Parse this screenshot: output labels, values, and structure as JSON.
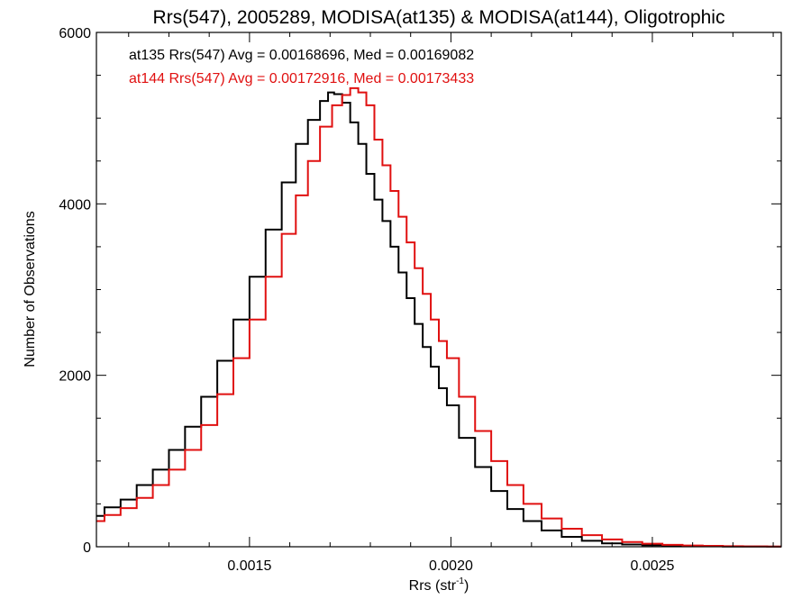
{
  "chart_data": {
    "type": "line",
    "title": "Rrs(547), 2005289, MODISA(at135) & MODISA(at144), Oligotrophic",
    "xlabel": "Rrs (str",
    "xlabel_sup": "-1",
    "xlabel_suffix": ")",
    "ylabel": "Number of Observations",
    "xlim": [
      0.00112,
      0.00282
    ],
    "ylim": [
      0,
      6000
    ],
    "x_ticks": [
      {
        "value": 0.0015,
        "label": "0.0015"
      },
      {
        "value": 0.002,
        "label": "0.0020"
      },
      {
        "value": 0.0025,
        "label": "0.0025"
      }
    ],
    "y_ticks": [
      {
        "value": 0,
        "label": "0"
      },
      {
        "value": 2000,
        "label": "2000"
      },
      {
        "value": 4000,
        "label": "4000"
      },
      {
        "value": 6000,
        "label": "6000"
      }
    ],
    "series": [
      {
        "name": "at135",
        "color": "#000000",
        "stats_text": "at135 Rrs(547) Avg = 0.00168696, Med = 0.00169082",
        "step": "mid",
        "x": [
          0.00112,
          0.00116,
          0.0012,
          0.00124,
          0.00128,
          0.00132,
          0.00136,
          0.0014,
          0.00144,
          0.00148,
          0.00152,
          0.00156,
          0.0016,
          0.00163,
          0.00166,
          0.00169,
          0.0017,
          0.00172,
          0.00174,
          0.00176,
          0.00178,
          0.0018,
          0.00182,
          0.00184,
          0.00186,
          0.00188,
          0.0019,
          0.00192,
          0.00194,
          0.00196,
          0.00198,
          0.002,
          0.00204,
          0.00208,
          0.00212,
          0.00216,
          0.0022,
          0.00225,
          0.0023,
          0.00235,
          0.0024,
          0.00245,
          0.0025,
          0.00255,
          0.0026,
          0.00265,
          0.0027,
          0.00275,
          0.00282
        ],
        "values": [
          360,
          460,
          550,
          720,
          900,
          1130,
          1400,
          1750,
          2170,
          2650,
          3150,
          3700,
          4250,
          4700,
          4980,
          5200,
          5300,
          5280,
          5180,
          4950,
          4700,
          4350,
          4050,
          3800,
          3500,
          3200,
          2900,
          2600,
          2330,
          2100,
          1850,
          1650,
          1270,
          930,
          650,
          440,
          300,
          190,
          115,
          70,
          40,
          26,
          17,
          12,
          8,
          5,
          3,
          2,
          1
        ]
      },
      {
        "name": "at144",
        "color": "#e01010",
        "stats_text": "at144 Rrs(547) Avg = 0.00172916, Med = 0.00173433",
        "step": "mid",
        "x": [
          0.00112,
          0.00116,
          0.0012,
          0.00124,
          0.00128,
          0.00132,
          0.00136,
          0.0014,
          0.00144,
          0.00148,
          0.00152,
          0.00156,
          0.0016,
          0.00163,
          0.00166,
          0.00169,
          0.00172,
          0.00174,
          0.00176,
          0.00178,
          0.0018,
          0.00182,
          0.00184,
          0.00186,
          0.00188,
          0.0019,
          0.00192,
          0.00194,
          0.00196,
          0.00198,
          0.002,
          0.00204,
          0.00208,
          0.00212,
          0.00216,
          0.0022,
          0.00225,
          0.0023,
          0.00235,
          0.0024,
          0.00245,
          0.0025,
          0.00255,
          0.0026,
          0.00265,
          0.0027,
          0.00275,
          0.00282
        ],
        "values": [
          300,
          370,
          450,
          570,
          720,
          900,
          1130,
          1420,
          1780,
          2200,
          2650,
          3150,
          3650,
          4100,
          4500,
          4900,
          5150,
          5270,
          5350,
          5300,
          5150,
          4750,
          4450,
          4150,
          3850,
          3550,
          3250,
          2950,
          2650,
          2400,
          2200,
          1750,
          1350,
          1000,
          720,
          500,
          330,
          210,
          135,
          85,
          55,
          35,
          22,
          15,
          10,
          7,
          4,
          2
        ]
      }
    ]
  }
}
